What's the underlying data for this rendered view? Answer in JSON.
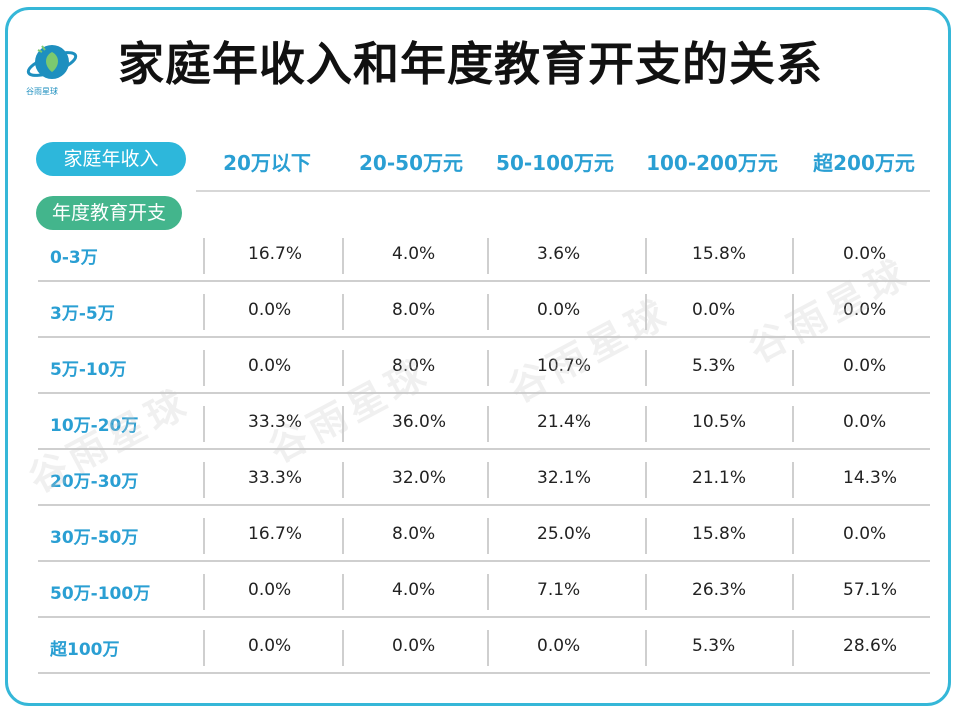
{
  "title": "家庭年收入和年度教育开支的关系",
  "logo_text": "谷雨星球",
  "watermark": "谷雨星球",
  "header_labels": {
    "income": "家庭年收入",
    "education": "年度教育开支"
  },
  "colors": {
    "accent_blue": "#2db7db",
    "accent_green": "#43b58c",
    "border": "#35b7d8"
  },
  "icons": {
    "logo": "planet-leaf-icon"
  },
  "chart_data": {
    "type": "table",
    "title": "家庭年收入和年度教育开支的关系",
    "columns": [
      "20万以下",
      "20-50万元",
      "50-100万元",
      "100-200万元",
      "超200万元"
    ],
    "rows": [
      {
        "label": "0-3万",
        "values": [
          "16.7%",
          "4.0%",
          "3.6%",
          "15.8%",
          "0.0%"
        ]
      },
      {
        "label": "3万-5万",
        "values": [
          "0.0%",
          "8.0%",
          "0.0%",
          "0.0%",
          "0.0%"
        ]
      },
      {
        "label": "5万-10万",
        "values": [
          "0.0%",
          "8.0%",
          "10.7%",
          "5.3%",
          "0.0%"
        ]
      },
      {
        "label": "10万-20万",
        "values": [
          "33.3%",
          "36.0%",
          "21.4%",
          "10.5%",
          "0.0%"
        ]
      },
      {
        "label": "20万-30万",
        "values": [
          "33.3%",
          "32.0%",
          "32.1%",
          "21.1%",
          "14.3%"
        ]
      },
      {
        "label": "30万-50万",
        "values": [
          "16.7%",
          "8.0%",
          "25.0%",
          "15.8%",
          "0.0%"
        ]
      },
      {
        "label": "50万-100万",
        "values": [
          "0.0%",
          "4.0%",
          "7.1%",
          "26.3%",
          "57.1%"
        ]
      },
      {
        "label": "超100万",
        "values": [
          "0.0%",
          "0.0%",
          "0.0%",
          "5.3%",
          "28.6%"
        ]
      }
    ]
  }
}
